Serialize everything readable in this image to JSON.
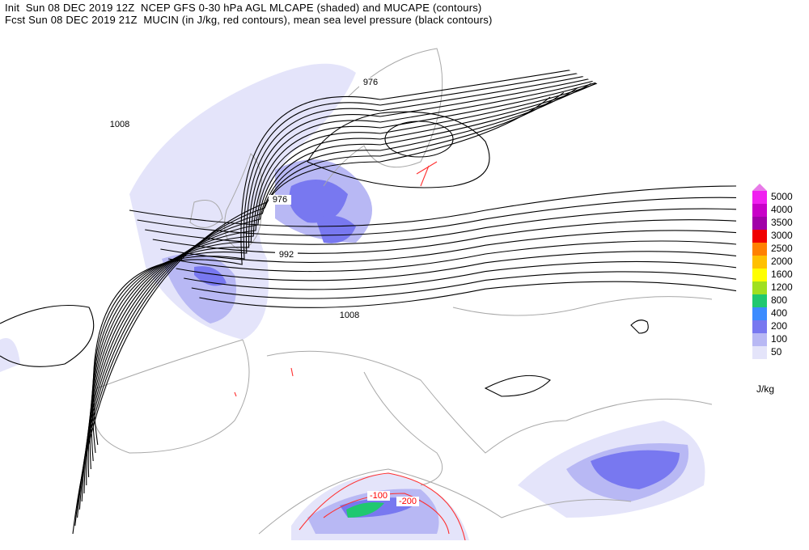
{
  "header": {
    "line1": "Init  Sun 08 DEC 2019 12Z  NCEP GFS 0-30 hPa AGL MLCAPE (shaded) and MUCAPE (contours)",
    "line2": "Fcst Sun 08 DEC 2019 21Z  MUCIN (in J/kg, red contours), mean sea level pressure (black contours)"
  },
  "legend": {
    "top_color": "#e87ae8",
    "levels": [
      {
        "label": "5000",
        "color": "#f020f0"
      },
      {
        "label": "4000",
        "color": "#c800c8"
      },
      {
        "label": "3500",
        "color": "#a000a8"
      },
      {
        "label": "3000",
        "color": "#f00000"
      },
      {
        "label": "2500",
        "color": "#ff8000"
      },
      {
        "label": "2000",
        "color": "#ffc000"
      },
      {
        "label": "1600",
        "color": "#ffff00"
      },
      {
        "label": "1200",
        "color": "#a0e020"
      },
      {
        "label": "800",
        "color": "#20c870"
      },
      {
        "label": "400",
        "color": "#3c8cff"
      },
      {
        "label": "200",
        "color": "#7878f0"
      },
      {
        "label": "100",
        "color": "#b8b8f4"
      },
      {
        "label": "50",
        "color": "#e4e4fa"
      }
    ],
    "unit": "J/kg"
  },
  "contour_labels": [
    {
      "text": "1008",
      "color": "#000000"
    },
    {
      "text": "976",
      "color": "#000000"
    },
    {
      "text": "976",
      "color": "#000000"
    },
    {
      "text": "992",
      "color": "#000000"
    },
    {
      "text": "1008",
      "color": "#000000"
    },
    {
      "text": "-100",
      "color": "#ff0000"
    },
    {
      "text": "-200",
      "color": "#ff0000"
    }
  ]
}
